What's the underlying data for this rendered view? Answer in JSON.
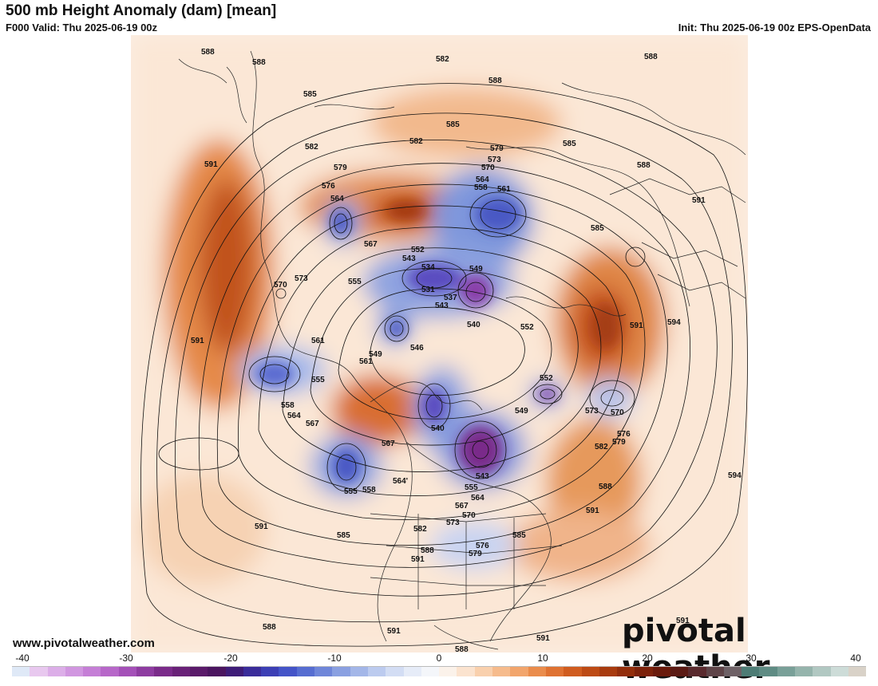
{
  "header": {
    "title": "500 mb Height Anomaly (dam) [mean]",
    "valid": "F000 Valid: Thu 2025-06-19 00z",
    "init": "Init: Thu 2025-06-19 00z EPS-OpenData"
  },
  "footer": {
    "website": "www.pivotalweather.com",
    "logo_text": "pivotal weather"
  },
  "colorbar": {
    "ticks": [
      "-40",
      "-30",
      "-20",
      "-10",
      "0",
      "10",
      "20",
      "30",
      "40"
    ],
    "colors": [
      "#dfe9f7",
      "#e8c8ef",
      "#dcaee8",
      "#d196e0",
      "#c57ed6",
      "#b767c9",
      "#a450b8",
      "#8e3ca1",
      "#7a2b8a",
      "#692178",
      "#5a1a6a",
      "#4b1560",
      "#3e1c78",
      "#3a2c9a",
      "#3c3fb5",
      "#4454c8",
      "#566dd1",
      "#6f86d9",
      "#8aa0e1",
      "#a3b6e8",
      "#bccbef",
      "#d3ddf4",
      "#e6ecf8",
      "#f4f6fa",
      "#fbf2ea",
      "#fbe3cf",
      "#f9d0ad",
      "#f6bb8c",
      "#f2a56c",
      "#ea8c4c",
      "#df7232",
      "#d05c1f",
      "#bd4a14",
      "#a83b0f",
      "#932e0c",
      "#7d220b",
      "#6a1a0c",
      "#5b1a14",
      "#5a2a2e",
      "#5f4448",
      "#6e6166",
      "#4d7c75",
      "#5f8c84",
      "#79a098",
      "#95b4ac",
      "#b1c8c2",
      "#cddcd8",
      "#d9d2c8"
    ]
  },
  "map": {
    "contour_labels": [
      {
        "text": "588"
      },
      {
        "text": "588"
      },
      {
        "text": "582"
      },
      {
        "text": "588"
      },
      {
        "text": "588"
      },
      {
        "text": "585"
      },
      {
        "text": "585"
      },
      {
        "text": "585"
      },
      {
        "text": "582"
      },
      {
        "text": "582"
      },
      {
        "text": "579"
      },
      {
        "text": "573"
      },
      {
        "text": "570"
      },
      {
        "text": "588"
      },
      {
        "text": "591"
      },
      {
        "text": "579"
      },
      {
        "text": "576"
      },
      {
        "text": "564"
      },
      {
        "text": "564"
      },
      {
        "text": "558"
      },
      {
        "text": "561"
      },
      {
        "text": "591"
      },
      {
        "text": "567"
      },
      {
        "text": "585"
      },
      {
        "text": "552"
      },
      {
        "text": "543"
      },
      {
        "text": "534"
      },
      {
        "text": "531"
      },
      {
        "text": "549"
      },
      {
        "text": "537"
      },
      {
        "text": "543"
      },
      {
        "text": "555"
      },
      {
        "text": "573"
      },
      {
        "text": "570"
      },
      {
        "text": "540"
      },
      {
        "text": "552"
      },
      {
        "text": "591"
      },
      {
        "text": "594"
      },
      {
        "text": "591"
      },
      {
        "text": "549"
      },
      {
        "text": "546"
      },
      {
        "text": "561"
      },
      {
        "text": "561"
      },
      {
        "text": "555"
      },
      {
        "text": "552"
      },
      {
        "text": "549"
      },
      {
        "text": "558"
      },
      {
        "text": "564"
      },
      {
        "text": "567"
      },
      {
        "text": "573"
      },
      {
        "text": "570"
      },
      {
        "text": "540"
      },
      {
        "text": "576"
      },
      {
        "text": "579"
      },
      {
        "text": "582"
      },
      {
        "text": "567"
      },
      {
        "text": "543"
      },
      {
        "text": "555"
      },
      {
        "text": "558"
      },
      {
        "text": "564'"
      },
      {
        "text": "555"
      },
      {
        "text": "564"
      },
      {
        "text": "567"
      },
      {
        "text": "570"
      },
      {
        "text": "573"
      },
      {
        "text": "588"
      },
      {
        "text": "591"
      },
      {
        "text": "594"
      },
      {
        "text": "591"
      },
      {
        "text": "585"
      },
      {
        "text": "582"
      },
      {
        "text": "585"
      },
      {
        "text": "576"
      },
      {
        "text": "579"
      },
      {
        "text": "588"
      },
      {
        "text": "591"
      },
      {
        "text": "588"
      },
      {
        "text": "591"
      },
      {
        "text": "588"
      },
      {
        "text": "591"
      },
      {
        "text": "591"
      }
    ]
  }
}
